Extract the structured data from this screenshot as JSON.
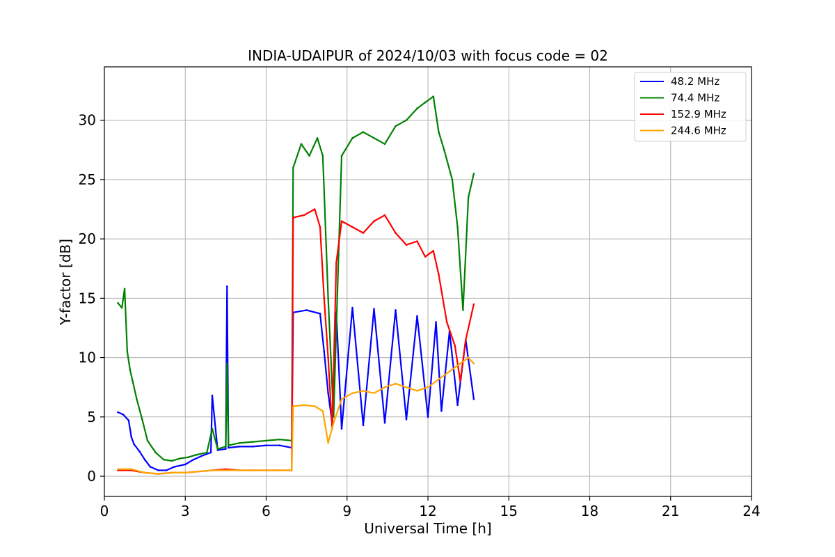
{
  "chart_data": {
    "type": "line",
    "title": "INDIA-UDAIPUR of 2024/10/03 with focus code = 02",
    "xlabel": "Universal Time [h]",
    "ylabel": "Y-factor [dB]",
    "xlim": [
      0,
      24
    ],
    "ylim": [
      -1.7,
      34.5
    ],
    "xticks": [
      0,
      3,
      6,
      9,
      12,
      15,
      18,
      21,
      24
    ],
    "yticks": [
      0,
      5,
      10,
      15,
      20,
      25,
      30
    ],
    "grid": true,
    "legend_position": "top-right",
    "series": [
      {
        "name": " 48.2 MHz",
        "color": "#0000ff",
        "x": [
          0.5,
          0.7,
          0.9,
          1.0,
          1.1,
          1.3,
          1.5,
          1.7,
          2.0,
          2.3,
          2.6,
          3.0,
          3.3,
          3.6,
          3.95,
          4.0,
          4.2,
          4.5,
          4.55,
          4.6,
          5.0,
          5.5,
          6.0,
          6.5,
          6.95,
          7.0,
          7.5,
          8.0,
          8.15,
          8.3,
          8.45,
          8.6,
          8.8,
          9.2,
          9.6,
          10.0,
          10.4,
          10.8,
          11.2,
          11.6,
          12.0,
          12.3,
          12.5,
          12.8,
          13.1,
          13.4,
          13.7
        ],
        "y": [
          5.4,
          5.2,
          4.7,
          3.3,
          2.7,
          2.1,
          1.4,
          0.8,
          0.5,
          0.5,
          0.8,
          1.0,
          1.4,
          1.7,
          2.0,
          6.8,
          2.2,
          2.3,
          16.0,
          2.4,
          2.5,
          2.5,
          2.6,
          2.6,
          2.4,
          13.8,
          14.0,
          13.7,
          10.5,
          7.0,
          4.5,
          13.8,
          4.0,
          14.2,
          4.3,
          14.1,
          4.5,
          14.0,
          4.8,
          13.5,
          5.0,
          13.0,
          5.5,
          12.2,
          6.0,
          11.5,
          6.5
        ]
      },
      {
        "name": " 74.4 MHz",
        "color": "#008000",
        "x": [
          0.5,
          0.65,
          0.75,
          0.85,
          0.95,
          1.05,
          1.2,
          1.4,
          1.6,
          1.9,
          2.2,
          2.5,
          2.8,
          3.1,
          3.4,
          3.8,
          4.0,
          4.2,
          4.5,
          4.55,
          4.6,
          5.0,
          5.5,
          6.0,
          6.5,
          6.95,
          7.0,
          7.3,
          7.6,
          7.9,
          8.1,
          8.3,
          8.5,
          8.8,
          9.2,
          9.6,
          10.0,
          10.4,
          10.8,
          11.2,
          11.6,
          11.9,
          12.2,
          12.4,
          12.6,
          12.9,
          13.1,
          13.3,
          13.5,
          13.7
        ],
        "y": [
          14.6,
          14.2,
          15.8,
          10.5,
          9.0,
          8.0,
          6.5,
          4.8,
          3.0,
          2.0,
          1.4,
          1.3,
          1.5,
          1.6,
          1.8,
          2.0,
          4.0,
          2.3,
          2.5,
          9.5,
          2.6,
          2.8,
          2.9,
          3.0,
          3.1,
          3.0,
          26.0,
          28.0,
          27.0,
          28.5,
          27.0,
          15.0,
          5.0,
          27.0,
          28.5,
          29.0,
          28.5,
          28.0,
          29.5,
          30.0,
          31.0,
          31.5,
          32.0,
          29.0,
          27.5,
          25.0,
          21.0,
          14.0,
          23.5,
          25.5
        ]
      },
      {
        "name": " 152.9 MHz",
        "color": "#ff0000",
        "x": [
          0.5,
          1.0,
          1.5,
          2.0,
          2.5,
          3.0,
          3.5,
          4.0,
          4.5,
          5.0,
          5.5,
          6.0,
          6.5,
          6.95,
          7.0,
          7.4,
          7.8,
          8.0,
          8.15,
          8.3,
          8.45,
          8.6,
          8.8,
          9.2,
          9.6,
          10.0,
          10.4,
          10.8,
          11.2,
          11.6,
          11.9,
          12.2,
          12.4,
          12.7,
          13.0,
          13.2,
          13.4,
          13.7
        ],
        "y": [
          0.5,
          0.5,
          0.3,
          0.2,
          0.3,
          0.3,
          0.4,
          0.5,
          0.6,
          0.5,
          0.5,
          0.5,
          0.5,
          0.5,
          21.8,
          22.0,
          22.5,
          21.0,
          15.0,
          10.0,
          4.0,
          18.0,
          21.5,
          21.0,
          20.5,
          21.5,
          22.0,
          20.5,
          19.5,
          19.8,
          18.5,
          19.0,
          17.0,
          13.0,
          11.0,
          8.0,
          11.5,
          14.5
        ]
      },
      {
        "name": " 244.6 MHz",
        "color": "#ffa500",
        "x": [
          0.5,
          1.0,
          1.5,
          2.0,
          2.5,
          3.0,
          3.5,
          4.0,
          4.5,
          5.0,
          5.5,
          6.0,
          6.5,
          6.95,
          7.0,
          7.4,
          7.8,
          8.1,
          8.3,
          8.5,
          8.8,
          9.2,
          9.6,
          10.0,
          10.4,
          10.8,
          11.2,
          11.6,
          12.0,
          12.3,
          12.6,
          12.9,
          13.2,
          13.5,
          13.7
        ],
        "y": [
          0.6,
          0.6,
          0.3,
          0.2,
          0.3,
          0.3,
          0.4,
          0.5,
          0.5,
          0.5,
          0.5,
          0.5,
          0.5,
          0.5,
          5.9,
          6.0,
          5.9,
          5.5,
          2.8,
          4.5,
          6.5,
          7.0,
          7.2,
          7.0,
          7.5,
          7.8,
          7.5,
          7.2,
          7.5,
          8.0,
          8.5,
          9.0,
          9.5,
          10.0,
          9.5
        ]
      }
    ]
  }
}
